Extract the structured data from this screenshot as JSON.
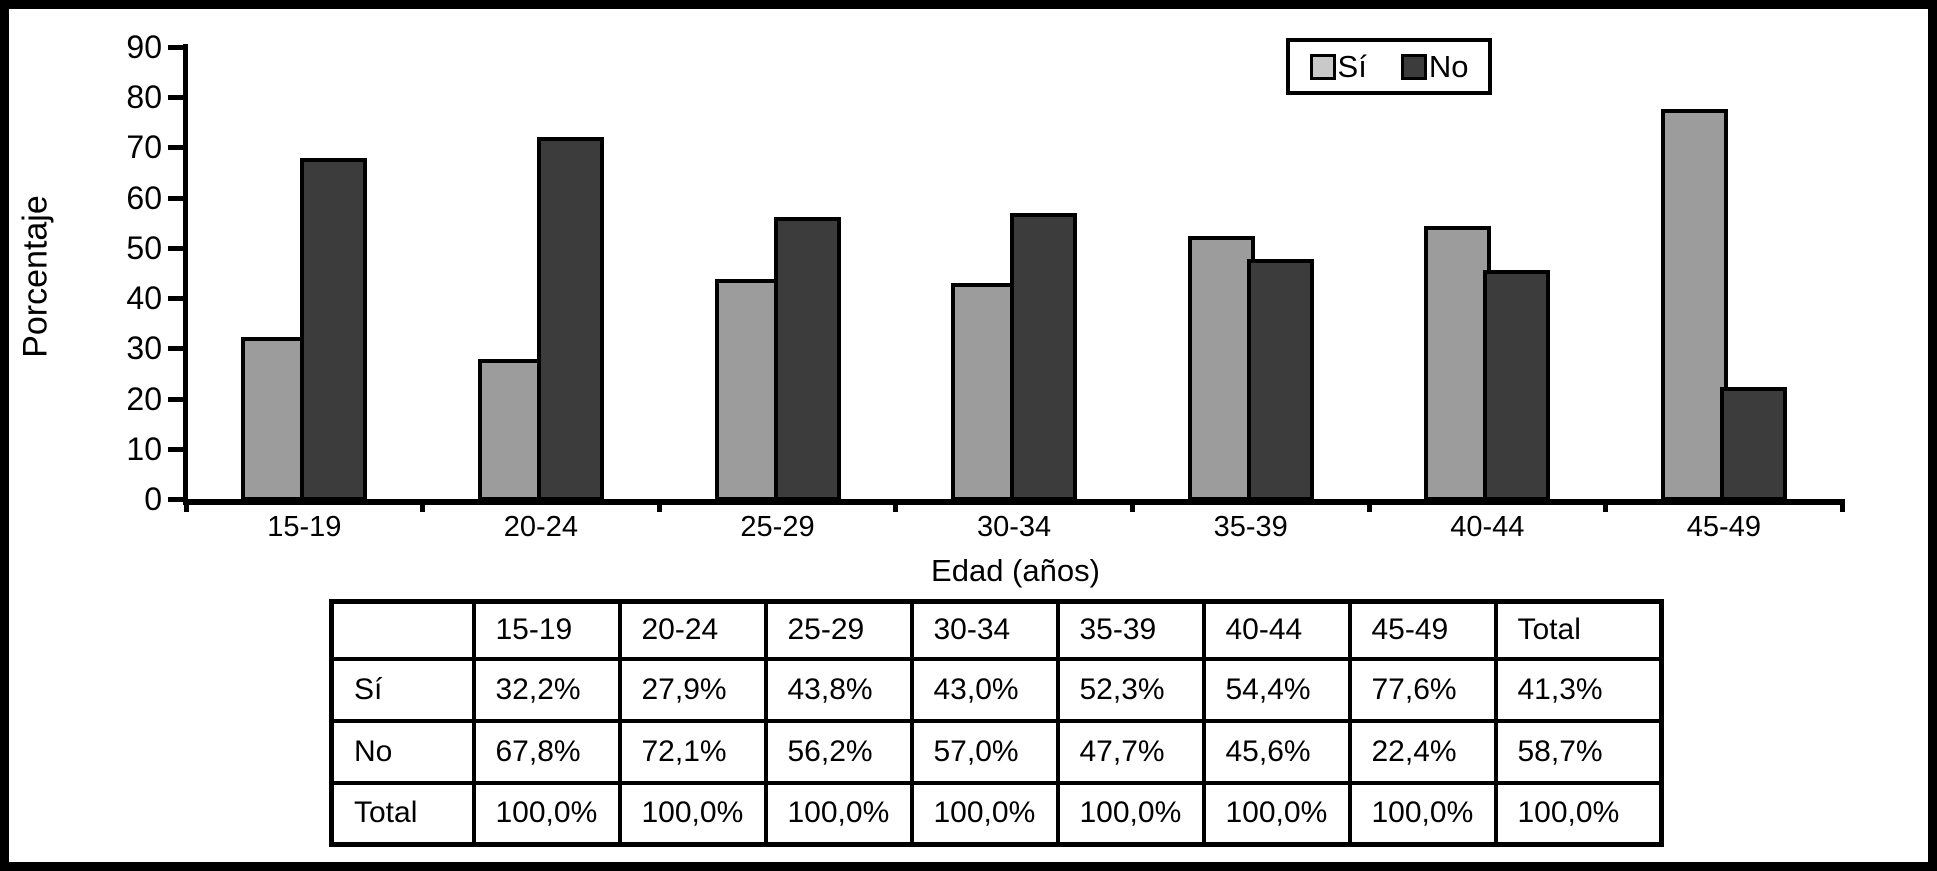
{
  "chart_data": {
    "type": "bar",
    "title": "",
    "categories": [
      "15-19",
      "20-24",
      "25-29",
      "30-34",
      "35-39",
      "40-44",
      "45-49"
    ],
    "series": [
      {
        "name": "Sí",
        "bar_color": "#9c9c9c",
        "legend_swatch_color": "#c9c9c9",
        "values": [
          32.2,
          27.9,
          43.8,
          43.0,
          52.3,
          54.4,
          77.6
        ]
      },
      {
        "name": "No",
        "bar_color": "#3c3c3c",
        "legend_swatch_color": "#3c3c3c",
        "values": [
          67.8,
          72.1,
          56.2,
          57.0,
          47.7,
          45.6,
          22.4
        ]
      }
    ],
    "xlabel": "Edad (años)",
    "ylabel": "Porcentaje",
    "ylim": [
      0,
      90
    ],
    "ytick_step": 10,
    "grid": false,
    "legend_position": "top-right",
    "axis_color": "#000000",
    "background_color": "#ffffff"
  },
  "table": {
    "columns": [
      "",
      "15-19",
      "20-24",
      "25-29",
      "30-34",
      "35-39",
      "40-44",
      "45-49",
      "Total"
    ],
    "rows": [
      {
        "label": "Sí",
        "values": [
          "32,2%",
          "27,9%",
          "43,8%",
          "43,0%",
          "52,3%",
          "54,4%",
          "77,6%",
          "41,3%"
        ]
      },
      {
        "label": "No",
        "values": [
          "67,8%",
          "72,1%",
          "56,2%",
          "57,0%",
          "47,7%",
          "45,6%",
          "22,4%",
          "58,7%"
        ]
      },
      {
        "label": "Total",
        "values": [
          "100,0%",
          "100,0%",
          "100,0%",
          "100,0%",
          "100,0%",
          "100,0%",
          "100,0%",
          "100,0%"
        ]
      }
    ]
  }
}
